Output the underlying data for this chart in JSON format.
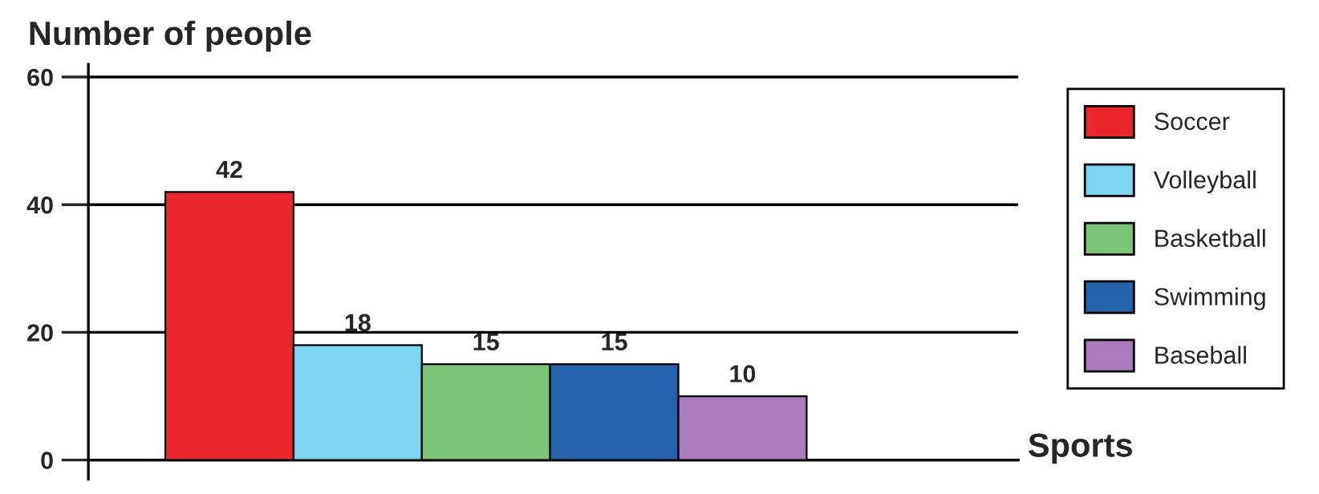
{
  "chart_data": {
    "type": "bar",
    "ylabel": "Number of people",
    "annotations": [
      "Sports"
    ],
    "categories": [
      null,
      null,
      null,
      null,
      null
    ],
    "series": [
      {
        "name": "Soccer",
        "color": "#e8262b",
        "values": [
          42,
          null,
          null,
          null,
          null
        ]
      },
      {
        "name": "Volleyball",
        "color": "#7dd3f0",
        "values": [
          null,
          18,
          null,
          null,
          null
        ]
      },
      {
        "name": "Basketball",
        "color": "#7cc576",
        "values": [
          null,
          null,
          15,
          null,
          null
        ]
      },
      {
        "name": "Swimming",
        "color": "#2563ad",
        "values": [
          null,
          null,
          null,
          15,
          null
        ]
      },
      {
        "name": "Baseball",
        "color": "#a97bbb",
        "values": [
          null,
          null,
          null,
          null,
          10
        ]
      }
    ],
    "stacked": true,
    "ylim": [
      -3,
      62
    ],
    "yticks": [
      0,
      20,
      40,
      60
    ],
    "grid": "y",
    "legend": "right",
    "data_labels": true
  }
}
